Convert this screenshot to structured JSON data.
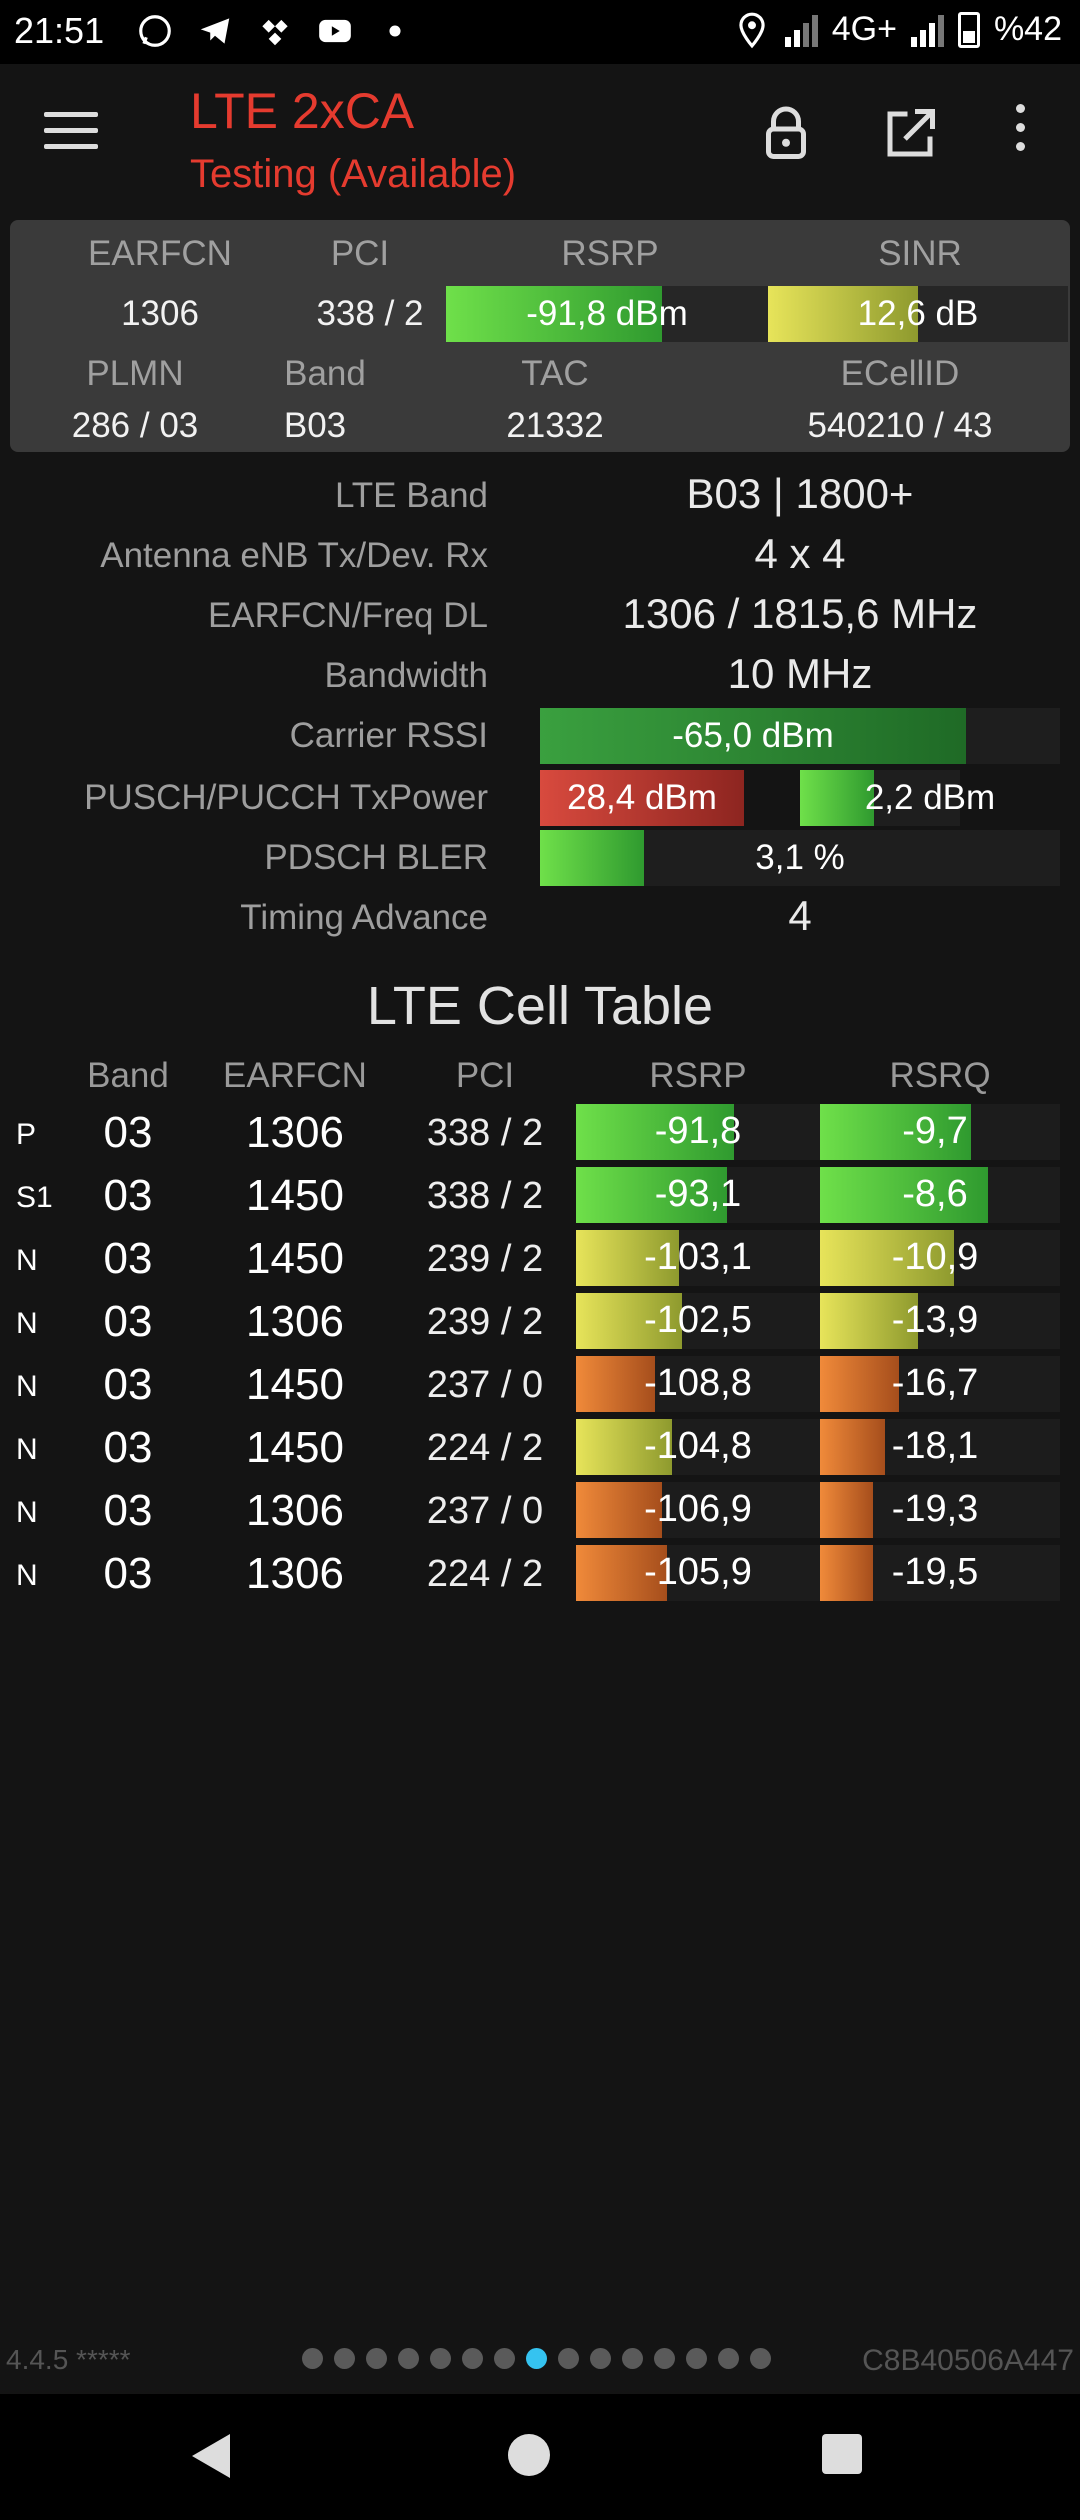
{
  "status_bar": {
    "time": "21:51",
    "network": "4G+",
    "battery": "%42",
    "icons": [
      "whatsapp-icon",
      "telegram-icon",
      "tidal-icon",
      "youtube-icon",
      "dot-icon",
      "location-icon",
      "signal-icon",
      "signal-icon",
      "battery-icon"
    ]
  },
  "toolbar": {
    "title": "LTE 2xCA",
    "subtitle": "Testing (Available)",
    "title_color": "#e53b2f"
  },
  "summary": {
    "labels": {
      "earfcn": "EARFCN",
      "pci": "PCI",
      "rsrp": "RSRP",
      "sinr": "SINR",
      "plmn": "PLMN",
      "band": "Band",
      "tac": "TAC",
      "ecellid": "ECellID"
    },
    "earfcn": "1306",
    "pci": "338 / 2",
    "rsrp": "-91,8 dBm",
    "rsrp_level": 0.67,
    "sinr": "12,6 dB",
    "sinr_level": 0.5,
    "plmn": "286 / 03",
    "band": "B03",
    "tac": "21332",
    "ecellid": "540210 / 43"
  },
  "details": {
    "lte_band_label": "LTE Band",
    "lte_band": "B03 | 1800+",
    "antenna_label": "Antenna eNB Tx/Dev. Rx",
    "antenna": "4 x 4",
    "freq_label": "EARFCN/Freq DL",
    "freq": "1306 / 1815,6 MHz",
    "bandwidth_label": "Bandwidth",
    "bandwidth": "10 MHz",
    "rssi_label": "Carrier RSSI",
    "rssi": "-65,0 dBm",
    "rssi_level": 0.82,
    "txpower_label": "PUSCH/PUCCH TxPower",
    "pusch": "28,4 dBm",
    "pusch_level": 1.0,
    "pucch": "2,2 dBm",
    "pucch_level": 0.46,
    "bler_label": "PDSCH BLER",
    "bler": "3,1 %",
    "bler_level": 0.2,
    "ta_label": "Timing Advance",
    "ta": "4"
  },
  "cell_table": {
    "title": "LTE Cell Table",
    "headers": {
      "band": "Band",
      "earfcn": "EARFCN",
      "pci": "PCI",
      "rsrp": "RSRP",
      "rsrq": "RSRQ"
    },
    "rows": [
      {
        "type": "P",
        "band": "03",
        "earfcn": "1306",
        "pci": "338 / 2",
        "rsrp": "-91,8",
        "rsrp_level": 0.66,
        "rsrp_color": "g",
        "rsrq": "-9,7",
        "rsrq_level": 0.63,
        "rsrq_color": "g"
      },
      {
        "type": "S1",
        "band": "03",
        "earfcn": "1450",
        "pci": "338 / 2",
        "rsrp": "-93,1",
        "rsrp_level": 0.63,
        "rsrp_color": "g",
        "rsrq": "-8,6",
        "rsrq_level": 0.7,
        "rsrq_color": "g"
      },
      {
        "type": "N",
        "band": "03",
        "earfcn": "1450",
        "pci": "239 / 2",
        "rsrp": "-103,1",
        "rsrp_level": 0.43,
        "rsrp_color": "y",
        "rsrq": "-10,9",
        "rsrq_level": 0.56,
        "rsrq_color": "y"
      },
      {
        "type": "N",
        "band": "03",
        "earfcn": "1306",
        "pci": "239 / 2",
        "rsrp": "-102,5",
        "rsrp_level": 0.44,
        "rsrp_color": "y",
        "rsrq": "-13,9",
        "rsrq_level": 0.41,
        "rsrq_color": "y"
      },
      {
        "type": "N",
        "band": "03",
        "earfcn": "1450",
        "pci": "237 / 0",
        "rsrp": "-108,8",
        "rsrp_level": 0.33,
        "rsrp_color": "o",
        "rsrq": "-16,7",
        "rsrq_level": 0.33,
        "rsrq_color": "o"
      },
      {
        "type": "N",
        "band": "03",
        "earfcn": "1450",
        "pci": "224 / 2",
        "rsrp": "-104,8",
        "rsrp_level": 0.4,
        "rsrp_color": "y",
        "rsrq": "-18,1",
        "rsrq_level": 0.27,
        "rsrq_color": "o"
      },
      {
        "type": "N",
        "band": "03",
        "earfcn": "1306",
        "pci": "237 / 0",
        "rsrp": "-106,9",
        "rsrp_level": 0.36,
        "rsrp_color": "o",
        "rsrq": "-19,3",
        "rsrq_level": 0.22,
        "rsrq_color": "o"
      },
      {
        "type": "N",
        "band": "03",
        "earfcn": "1306",
        "pci": "224 / 2",
        "rsrp": "-105,9",
        "rsrp_level": 0.38,
        "rsrp_color": "o",
        "rsrq": "-19,5",
        "rsrq_level": 0.22,
        "rsrq_color": "o"
      }
    ]
  },
  "footer": {
    "version": "4.4.5 *****",
    "device_id": "C8B40506A447",
    "page_count": 15,
    "active_page": 8,
    "active_color": "#35c3f0"
  }
}
